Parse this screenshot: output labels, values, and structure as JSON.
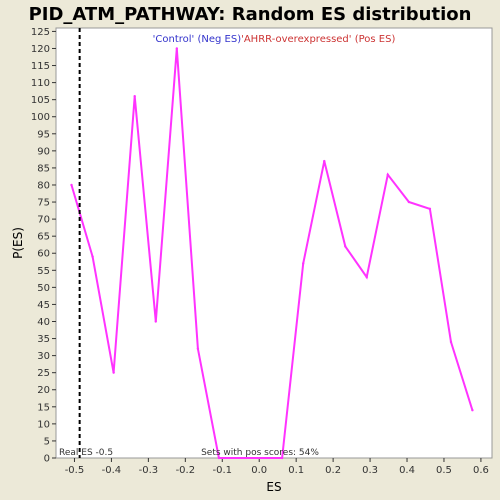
{
  "chart_data": {
    "type": "line",
    "title": "PID_ATM_PATHWAY: Random ES distribution",
    "xlabel": "ES",
    "ylabel": "P(ES)",
    "xlim": [
      -0.55,
      0.63
    ],
    "ylim": [
      0,
      126
    ],
    "x_ticks": [
      -0.5,
      -0.4,
      -0.3,
      -0.2,
      -0.1,
      0.0,
      0.1,
      0.2,
      0.3,
      0.4,
      0.5,
      0.6
    ],
    "x_tick_labels": [
      "-0.5",
      "-0.4",
      "-0.3",
      "-0.2",
      "-0.1",
      "0.0",
      "0.1",
      "0.2",
      "0.3",
      "0.4",
      "0.5",
      "0.6"
    ],
    "y_ticks": [
      0,
      5,
      10,
      15,
      20,
      25,
      30,
      35,
      40,
      45,
      50,
      55,
      60,
      65,
      70,
      75,
      80,
      85,
      90,
      95,
      100,
      105,
      110,
      115,
      120,
      125
    ],
    "y_tick_labels": [
      "0",
      "5",
      "10",
      "15",
      "20",
      "25",
      "30",
      "35",
      "40",
      "45",
      "50",
      "55",
      "60",
      "65",
      "70",
      "75",
      "80",
      "85",
      "90",
      "95",
      "100",
      "105",
      "110",
      "115",
      "120",
      "125"
    ],
    "grid": false,
    "series": [
      {
        "color": "#ff33ff",
        "x": [
          -0.508,
          -0.451,
          -0.394,
          -0.337,
          -0.28,
          -0.223,
          -0.166,
          -0.109,
          0.062,
          0.119,
          0.176,
          0.233,
          0.291,
          0.348,
          0.405,
          0.462,
          0.519,
          0.577
        ],
        "y": [
          80,
          59,
          25,
          106,
          40,
          120,
          32,
          0,
          0,
          57,
          87,
          62,
          53,
          83,
          75,
          73,
          34,
          14
        ]
      }
    ],
    "legend": {
      "placement": "top-center",
      "entries": [
        {
          "text": "'Control' (Neg ES)",
          "color": "#3333cc"
        },
        {
          "text": "'AHRR-overexpressed' (Pos ES)",
          "color": "#cc3333"
        }
      ]
    },
    "real_es": {
      "value": -0.486,
      "label": "Real ES -0.5"
    },
    "annotation": "Sets with pos scores: 54%"
  }
}
